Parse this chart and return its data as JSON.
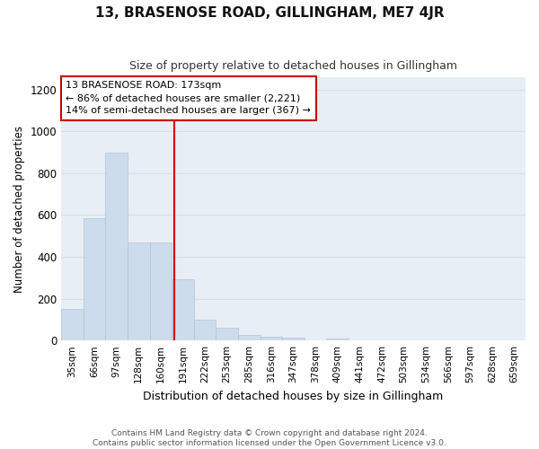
{
  "title": "13, BRASENOSE ROAD, GILLINGHAM, ME7 4JR",
  "subtitle": "Size of property relative to detached houses in Gillingham",
  "xlabel": "Distribution of detached houses by size in Gillingham",
  "ylabel": "Number of detached properties",
  "categories": [
    "35sqm",
    "66sqm",
    "97sqm",
    "128sqm",
    "160sqm",
    "191sqm",
    "222sqm",
    "253sqm",
    "285sqm",
    "316sqm",
    "347sqm",
    "378sqm",
    "409sqm",
    "441sqm",
    "472sqm",
    "503sqm",
    "534sqm",
    "566sqm",
    "597sqm",
    "628sqm",
    "659sqm"
  ],
  "values": [
    150,
    585,
    900,
    468,
    468,
    292,
    100,
    62,
    28,
    18,
    13,
    0,
    10,
    0,
    0,
    0,
    0,
    0,
    0,
    0,
    0
  ],
  "bar_color": "#cddcec",
  "bar_edge_color": "#b0c4d8",
  "grid_color": "#d4dde8",
  "background_color": "#e8eef5",
  "fig_background": "#ffffff",
  "vline_x": 4.62,
  "vline_color": "#cc0000",
  "annotation_line1": "13 BRASENOSE ROAD: 173sqm",
  "annotation_line2": "← 86% of detached houses are smaller (2,221)",
  "annotation_line3": "14% of semi-detached houses are larger (367) →",
  "annotation_box_color": "#ffffff",
  "annotation_box_edge": "#cc0000",
  "ylim": [
    0,
    1260
  ],
  "yticks": [
    0,
    200,
    400,
    600,
    800,
    1000,
    1200
  ],
  "footer_line1": "Contains HM Land Registry data © Crown copyright and database right 2024.",
  "footer_line2": "Contains public sector information licensed under the Open Government Licence v3.0."
}
